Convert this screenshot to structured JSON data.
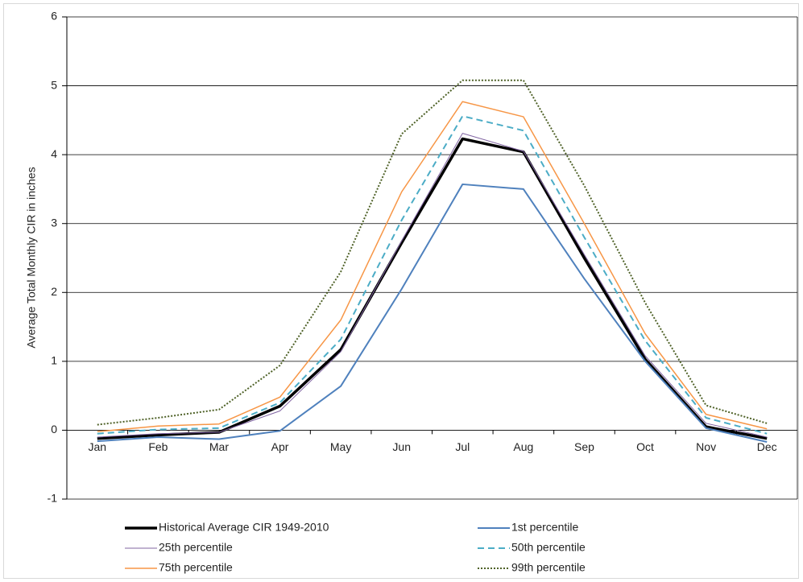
{
  "chart_data": {
    "type": "line",
    "y_label": "Average Total Monthly CIR in inches",
    "categories": [
      "Jan",
      "Feb",
      "Mar",
      "Apr",
      "May",
      "Jun",
      "Jul",
      "Aug",
      "Sep",
      "Oct",
      "Nov",
      "Dec"
    ],
    "ylim": [
      -1,
      6
    ],
    "yticks": [
      -1,
      0,
      1,
      2,
      3,
      4,
      5,
      6
    ],
    "grid": true,
    "series": [
      {
        "name": "Historical Average CIR 1949-2010",
        "color": "#000000",
        "dash": "solid",
        "values": [
          -0.12,
          -0.07,
          -0.03,
          0.35,
          1.17,
          2.72,
          4.23,
          4.04,
          2.5,
          1.03,
          0.05,
          -0.12
        ]
      },
      {
        "name": "1st percentile",
        "color": "#4f81bd",
        "dash": "solid",
        "values": [
          -0.16,
          -0.1,
          -0.13,
          -0.01,
          0.64,
          2.05,
          3.57,
          3.5,
          2.2,
          1.0,
          0.03,
          -0.17
        ]
      },
      {
        "name": "25th percentile",
        "color": "#8064a2",
        "dash": "solid",
        "values": [
          -0.1,
          -0.05,
          -0.03,
          0.28,
          1.14,
          2.75,
          4.31,
          4.05,
          2.55,
          1.08,
          0.1,
          -0.1
        ]
      },
      {
        "name": "50th percentile",
        "color": "#4bacc6",
        "dash": "dashed",
        "values": [
          -0.05,
          0.01,
          0.03,
          0.4,
          1.32,
          3.05,
          4.56,
          4.35,
          2.8,
          1.3,
          0.18,
          -0.05
        ]
      },
      {
        "name": "75th percentile",
        "color": "#f79646",
        "dash": "solid",
        "values": [
          -0.02,
          0.06,
          0.09,
          0.48,
          1.6,
          3.46,
          4.77,
          4.55,
          3.0,
          1.4,
          0.23,
          0.02
        ]
      },
      {
        "name": "99th percentile",
        "color": "#4f6228",
        "dash": "dotted",
        "values": [
          0.08,
          0.18,
          0.3,
          0.94,
          2.3,
          4.3,
          5.08,
          5.08,
          3.55,
          1.85,
          0.36,
          0.1
        ]
      }
    ]
  }
}
